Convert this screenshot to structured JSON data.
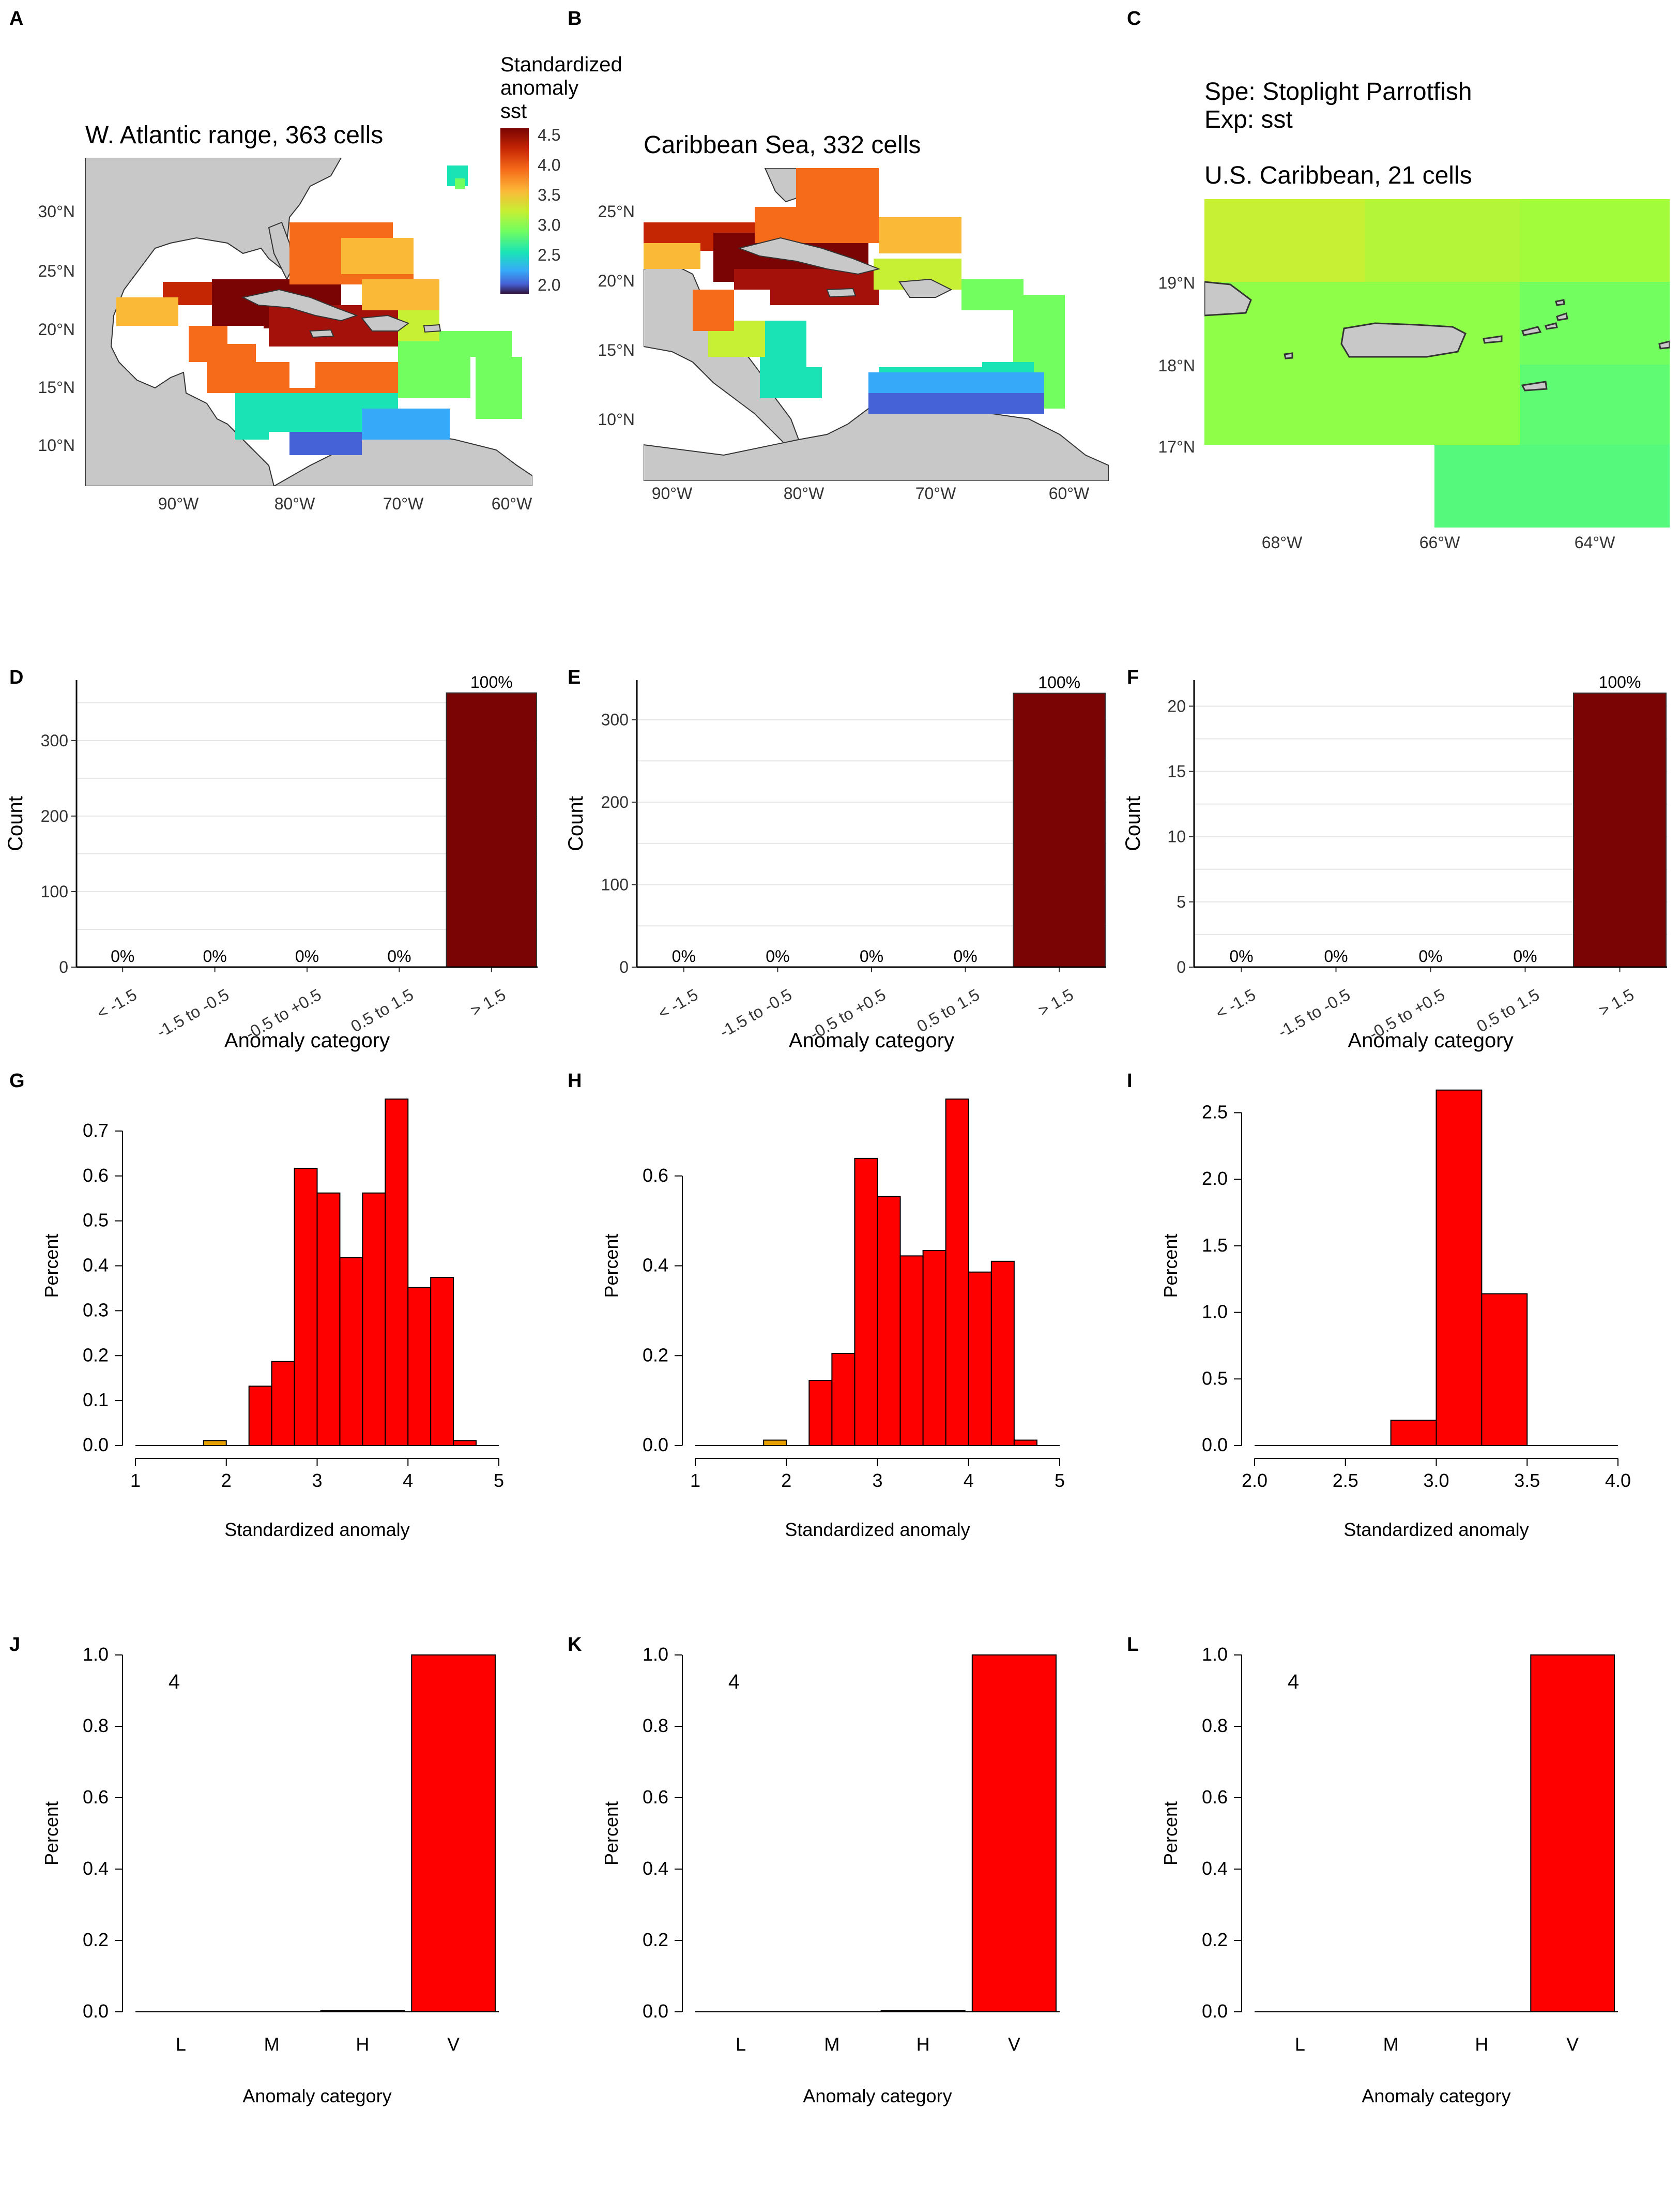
{
  "panel_letters": [
    "A",
    "B",
    "C",
    "D",
    "E",
    "F",
    "G",
    "H",
    "I",
    "J",
    "K",
    "L"
  ],
  "maps": {
    "legend_title_1": "Standardized",
    "legend_title_2": "anomaly",
    "legend_title_3": "sst",
    "legend_ticks": [
      "4.5",
      "4.0",
      "3.5",
      "3.0",
      "2.5",
      "2.0"
    ],
    "colors": {
      "high": "#7a0403",
      "mid": "#a2fc3c",
      "low": "#30123b",
      "land": "#c8c8c8"
    },
    "panels": [
      {
        "title": "W. Atlantic range, 363 cells",
        "yticks": [
          "30°N",
          "25°N",
          "20°N",
          "15°N",
          "10°N"
        ],
        "xticks": [
          "90°W",
          "80°W",
          "70°W",
          "60°W"
        ]
      },
      {
        "title": "Caribbean Sea, 332 cells",
        "yticks": [
          "25°N",
          "20°N",
          "15°N",
          "10°N"
        ],
        "xticks": [
          "90°W",
          "80°W",
          "70°W",
          "60°W"
        ]
      },
      {
        "title": "U.S. Caribbean, 21 cells",
        "info_1": "Spe: Stoplight Parrotfish",
        "info_2": "Exp: sst",
        "yticks": [
          "19°N",
          "18°N",
          "17°N"
        ],
        "xticks": [
          "68°W",
          "66°W",
          "64°W"
        ]
      }
    ]
  },
  "chart_data": [
    {
      "panel": "D",
      "type": "bar",
      "categories": [
        "< -1.5",
        "-1.5 to -0.5",
        "-0.5 to +0.5",
        "0.5 to 1.5",
        "> 1.5"
      ],
      "values": [
        0,
        0,
        0,
        0,
        363
      ],
      "labels": [
        "0%",
        "0%",
        "0%",
        "0%",
        "100%"
      ],
      "xlabel": "Anomaly category",
      "ylabel": "Count",
      "ylim": [
        0,
        380
      ],
      "yticks": [
        0,
        100,
        200,
        300
      ],
      "color": "#7a0403"
    },
    {
      "panel": "E",
      "type": "bar",
      "categories": [
        "< -1.5",
        "-1.5 to -0.5",
        "-0.5 to +0.5",
        "0.5 to 1.5",
        "> 1.5"
      ],
      "values": [
        0,
        0,
        0,
        0,
        332
      ],
      "labels": [
        "0%",
        "0%",
        "0%",
        "0%",
        "100%"
      ],
      "xlabel": "Anomaly category",
      "ylabel": "Count",
      "ylim": [
        0,
        348
      ],
      "yticks": [
        0,
        100,
        200,
        300
      ],
      "color": "#7a0403"
    },
    {
      "panel": "F",
      "type": "bar",
      "categories": [
        "< -1.5",
        "-1.5 to -0.5",
        "-0.5 to +0.5",
        "0.5 to 1.5",
        "> 1.5"
      ],
      "values": [
        0,
        0,
        0,
        0,
        21
      ],
      "labels": [
        "0%",
        "0%",
        "0%",
        "0%",
        "100%"
      ],
      "xlabel": "Anomaly category",
      "ylabel": "Count",
      "ylim": [
        0,
        22
      ],
      "yticks": [
        0,
        5,
        10,
        15,
        20
      ],
      "color": "#7a0403"
    },
    {
      "panel": "G",
      "type": "bar",
      "subtype": "histogram",
      "bins": [
        [
          1.75,
          2.0
        ],
        [
          2.25,
          2.5
        ],
        [
          2.5,
          2.75
        ],
        [
          2.75,
          3.0
        ],
        [
          3.0,
          3.25
        ],
        [
          3.25,
          3.5
        ],
        [
          3.5,
          3.75
        ],
        [
          3.75,
          4.0
        ],
        [
          4.0,
          4.25
        ],
        [
          4.25,
          4.5
        ],
        [
          4.5,
          4.75
        ]
      ],
      "values": [
        0.011,
        0.132,
        0.187,
        0.617,
        0.562,
        0.418,
        0.562,
        0.771,
        0.352,
        0.374,
        0.011
      ],
      "colors": [
        "#e69f00",
        "#ff0000",
        "#ff0000",
        "#ff0000",
        "#ff0000",
        "#ff0000",
        "#ff0000",
        "#ff0000",
        "#ff0000",
        "#ff0000",
        "#ff0000"
      ],
      "xlabel": "Standardized anomaly",
      "ylabel": "Percent",
      "xlim": [
        1,
        5
      ],
      "ylim": [
        0,
        0.8
      ],
      "xticks": [
        "1",
        "2",
        "3",
        "4",
        "5"
      ],
      "yticks": [
        "0.0",
        "0.1",
        "0.2",
        "0.3",
        "0.4",
        "0.5",
        "0.6",
        "0.7"
      ]
    },
    {
      "panel": "H",
      "type": "bar",
      "subtype": "histogram",
      "bins": [
        [
          1.75,
          2.0
        ],
        [
          2.25,
          2.5
        ],
        [
          2.5,
          2.75
        ],
        [
          2.75,
          3.0
        ],
        [
          3.0,
          3.25
        ],
        [
          3.25,
          3.5
        ],
        [
          3.5,
          3.75
        ],
        [
          3.75,
          4.0
        ],
        [
          4.0,
          4.25
        ],
        [
          4.25,
          4.5
        ],
        [
          4.5,
          4.75
        ]
      ],
      "values": [
        0.012,
        0.145,
        0.205,
        0.639,
        0.554,
        0.422,
        0.434,
        0.771,
        0.386,
        0.41,
        0.012
      ],
      "colors": [
        "#e69f00",
        "#ff0000",
        "#ff0000",
        "#ff0000",
        "#ff0000",
        "#ff0000",
        "#ff0000",
        "#ff0000",
        "#ff0000",
        "#ff0000",
        "#ff0000"
      ],
      "xlabel": "Standardized anomaly",
      "ylabel": "Percent",
      "xlim": [
        1,
        5
      ],
      "ylim": [
        0,
        0.8
      ],
      "xticks": [
        "1",
        "2",
        "3",
        "4",
        "5"
      ],
      "yticks": [
        "0.0",
        "0.2",
        "0.4",
        "0.6"
      ]
    },
    {
      "panel": "I",
      "type": "bar",
      "subtype": "histogram",
      "bins": [
        [
          2.75,
          3.0
        ],
        [
          3.0,
          3.25
        ],
        [
          3.25,
          3.5
        ]
      ],
      "values": [
        0.19,
        2.67,
        1.14
      ],
      "colors": [
        "#ff0000",
        "#ff0000",
        "#ff0000"
      ],
      "xlabel": "Standardized anomaly",
      "ylabel": "Percent",
      "xlim": [
        2,
        4
      ],
      "ylim": [
        0,
        2.7
      ],
      "xticks": [
        "2.0",
        "2.5",
        "3.0",
        "3.5",
        "4.0"
      ],
      "yticks": [
        "0.0",
        "0.5",
        "1.0",
        "1.5",
        "2.0",
        "2.5"
      ]
    },
    {
      "panel": "J",
      "type": "bar",
      "categories": [
        "L",
        "M",
        "H",
        "V"
      ],
      "values": [
        0,
        0,
        0.003,
        1.0
      ],
      "annotation": "4",
      "xlabel": "Anomaly category",
      "ylabel": "Percent",
      "ylim": [
        0,
        1
      ],
      "yticks": [
        "0.0",
        "0.2",
        "0.4",
        "0.6",
        "0.8",
        "1.0"
      ],
      "color": "#ff0000"
    },
    {
      "panel": "K",
      "type": "bar",
      "categories": [
        "L",
        "M",
        "H",
        "V"
      ],
      "values": [
        0,
        0,
        0.003,
        1.0
      ],
      "annotation": "4",
      "xlabel": "Anomaly category",
      "ylabel": "Percent",
      "ylim": [
        0,
        1
      ],
      "yticks": [
        "0.0",
        "0.2",
        "0.4",
        "0.6",
        "0.8",
        "1.0"
      ],
      "color": "#ff0000"
    },
    {
      "panel": "L",
      "type": "bar",
      "categories": [
        "L",
        "M",
        "H",
        "V"
      ],
      "values": [
        0,
        0,
        0,
        1.0
      ],
      "annotation": "4",
      "xlabel": "Anomaly category",
      "ylabel": "Percent",
      "ylim": [
        0,
        1
      ],
      "yticks": [
        "0.0",
        "0.2",
        "0.4",
        "0.6",
        "0.8",
        "1.0"
      ],
      "color": "#ff0000"
    }
  ]
}
